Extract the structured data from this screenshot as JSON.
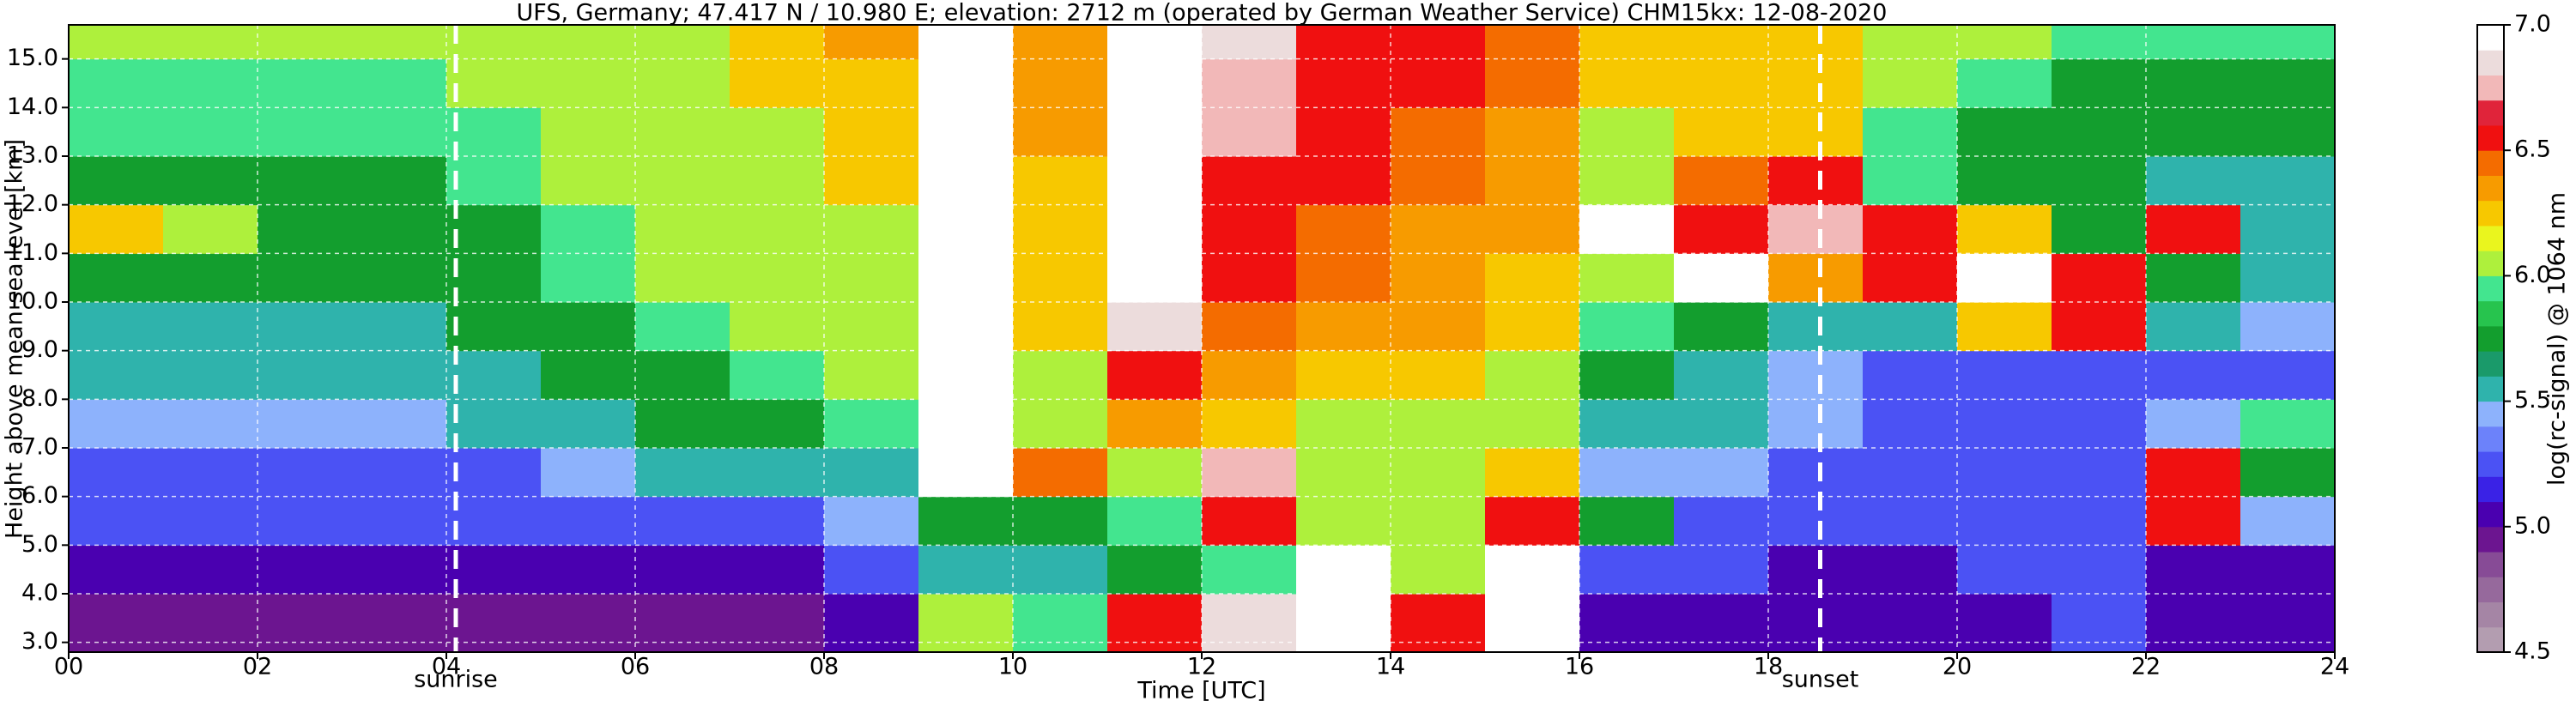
{
  "chart_data": {
    "type": "heatmap",
    "title": "UFS, Germany; 47.417 N / 10.980 E; elevation: 2712 m  (operated by German Weather Service)    CHM15kx: 12-08-2020",
    "x_label": "Time [UTC]",
    "y_label": "Height above mean sea level [km]",
    "colorbar_label": "log(rc-signal) @ 1064 nm",
    "xlim": [
      0,
      24
    ],
    "ylim": [
      2.8,
      15.7
    ],
    "xticks": [
      {
        "value": 0,
        "label": "00"
      },
      {
        "value": 2,
        "label": "02"
      },
      {
        "value": 4,
        "label": "04"
      },
      {
        "value": 6,
        "label": "06"
      },
      {
        "value": 8,
        "label": "08"
      },
      10,
      12,
      14,
      16,
      18,
      20,
      22,
      24
    ],
    "yticks": [
      {
        "value": 3,
        "label": "3.0"
      },
      {
        "value": 4,
        "label": "4.0"
      },
      {
        "value": 5,
        "label": "5.0"
      },
      {
        "value": 6,
        "label": "6.0"
      },
      {
        "value": 7,
        "label": "7.0"
      },
      {
        "value": 8,
        "label": "8.0"
      },
      {
        "value": 9,
        "label": "9.0"
      },
      {
        "value": 10,
        "label": "10.0"
      },
      {
        "value": 11,
        "label": "11.0"
      },
      {
        "value": 12,
        "label": "12.0"
      },
      {
        "value": 13,
        "label": "13.0"
      },
      {
        "value": 14,
        "label": "14.0"
      },
      {
        "value": 15,
        "label": "15.0"
      }
    ],
    "grid": true,
    "clim": [
      4.5,
      7
    ],
    "cticks": [
      {
        "value": 4.5,
        "label": "4.5"
      },
      {
        "value": 5,
        "label": "5.0"
      },
      {
        "value": 5.5,
        "label": "5.5"
      },
      {
        "value": 6,
        "label": "6.0"
      },
      {
        "value": 6.5,
        "label": "6.5"
      },
      {
        "value": 7,
        "label": "7.0"
      }
    ],
    "colormap": [
      "#b39db0",
      "#a585a5",
      "#96699c",
      "#874b96",
      "#6c1590",
      "#4a00b0",
      "#3a22e6",
      "#4b52f4",
      "#6c82fa",
      "#8db2fc",
      "#2fb3ac",
      "#1a9a6a",
      "#139e2e",
      "#27c44e",
      "#43e58f",
      "#aef03c",
      "#eaf51e",
      "#f7c800",
      "#f79b00",
      "#f46c00",
      "#f01010",
      "#e0243a",
      "#f2b8b8",
      "#ecdcdc",
      "#ffffff"
    ],
    "annotations": [
      {
        "text": "sunrise",
        "x": 4.1
      },
      {
        "text": "sunset",
        "x": 18.55
      }
    ],
    "xbins": [
      0,
      1,
      2,
      3,
      4,
      5,
      6,
      7,
      8,
      9,
      10,
      11,
      12,
      13,
      14,
      15,
      16,
      17,
      18,
      19,
      20,
      21,
      22,
      23,
      24
    ],
    "ybins": [
      2.8,
      4,
      5,
      6,
      7,
      8,
      9,
      10,
      11,
      12,
      13,
      14,
      15,
      15.7
    ],
    "z": [
      [
        4.9,
        4.9,
        4.9,
        4.9,
        4.9,
        4.9,
        4.9,
        4.9,
        5.0,
        6.0,
        5.9,
        6.6,
        6.8,
        7.0,
        6.6,
        7.0,
        5.1,
        5.1,
        5.0,
        5.0,
        5.0,
        5.3,
        5.0,
        5.0
      ],
      [
        5.1,
        5.1,
        5.1,
        5.1,
        5.1,
        5.1,
        5.1,
        5.1,
        5.2,
        5.6,
        5.5,
        5.8,
        5.9,
        6.9,
        6.0,
        6.9,
        5.2,
        5.2,
        5.1,
        5.1,
        5.2,
        5.2,
        5.1,
        5.1
      ],
      [
        5.2,
        5.2,
        5.2,
        5.2,
        5.2,
        5.2,
        5.3,
        5.3,
        5.4,
        5.7,
        5.8,
        5.9,
        6.6,
        6.0,
        6.1,
        6.6,
        5.8,
        5.3,
        5.2,
        5.2,
        5.2,
        5.2,
        6.5,
        5.4
      ],
      [
        5.3,
        5.3,
        5.3,
        5.3,
        5.3,
        5.4,
        5.5,
        5.5,
        5.6,
        6.9,
        6.4,
        6.0,
        6.7,
        6.0,
        6.0,
        6.2,
        5.4,
        5.4,
        5.3,
        5.3,
        5.3,
        5.3,
        6.6,
        5.8
      ],
      [
        5.4,
        5.4,
        5.4,
        5.4,
        5.5,
        5.6,
        5.7,
        5.8,
        5.9,
        7.0,
        6.0,
        6.3,
        6.2,
        6.1,
        6.1,
        6.0,
        5.6,
        5.5,
        5.4,
        5.3,
        5.3,
        5.3,
        5.4,
        5.9
      ],
      [
        5.5,
        5.5,
        5.5,
        5.5,
        5.6,
        5.7,
        5.8,
        5.9,
        6.0,
        7.0,
        6.1,
        6.5,
        6.3,
        6.2,
        6.2,
        6.1,
        5.8,
        5.6,
        5.4,
        5.3,
        5.3,
        5.3,
        5.3,
        5.3
      ],
      [
        5.6,
        5.6,
        5.6,
        5.6,
        5.7,
        5.8,
        5.9,
        6.0,
        6.1,
        7.0,
        6.2,
        6.8,
        6.4,
        6.3,
        6.3,
        6.2,
        5.9,
        5.7,
        5.6,
        5.5,
        6.2,
        6.6,
        5.6,
        5.4
      ],
      [
        5.7,
        5.7,
        5.7,
        5.7,
        5.8,
        5.9,
        6.0,
        6.1,
        6.1,
        7.0,
        6.2,
        7.0,
        6.5,
        6.4,
        6.3,
        6.2,
        6.0,
        6.9,
        6.3,
        6.6,
        7.0,
        6.5,
        5.7,
        5.5
      ],
      [
        6.2,
        6.0,
        5.8,
        5.7,
        5.8,
        5.9,
        6.0,
        6.1,
        6.1,
        7.0,
        6.2,
        7.0,
        6.6,
        6.4,
        6.3,
        6.3,
        7.0,
        6.6,
        6.7,
        6.6,
        6.2,
        5.8,
        6.5,
        5.6
      ],
      [
        5.8,
        5.8,
        5.8,
        5.8,
        5.9,
        6.0,
        6.0,
        6.1,
        6.2,
        7.0,
        6.2,
        7.0,
        6.6,
        6.5,
        6.4,
        6.3,
        6.0,
        6.4,
        6.6,
        5.9,
        5.8,
        5.7,
        5.6,
        5.6
      ],
      [
        5.9,
        5.9,
        5.9,
        5.9,
        5.9,
        6.0,
        6.1,
        6.1,
        6.2,
        7.0,
        6.3,
        7.0,
        6.7,
        6.6,
        6.4,
        6.3,
        6.1,
        6.2,
        6.2,
        5.9,
        5.8,
        5.7,
        5.7,
        5.7
      ],
      [
        5.9,
        5.9,
        5.9,
        5.9,
        6.0,
        6.0,
        6.1,
        6.2,
        6.2,
        7.0,
        6.3,
        7.0,
        6.7,
        6.6,
        6.5,
        6.4,
        6.2,
        6.2,
        6.2,
        6.0,
        5.9,
        5.8,
        5.8,
        5.8
      ],
      [
        6.0,
        6.0,
        6.0,
        6.0,
        6.0,
        6.1,
        6.1,
        6.2,
        6.3,
        7.0,
        6.3,
        7.0,
        6.8,
        6.6,
        6.5,
        6.4,
        6.2,
        6.2,
        6.2,
        6.0,
        6.0,
        5.9,
        5.9,
        5.9
      ]
    ]
  }
}
